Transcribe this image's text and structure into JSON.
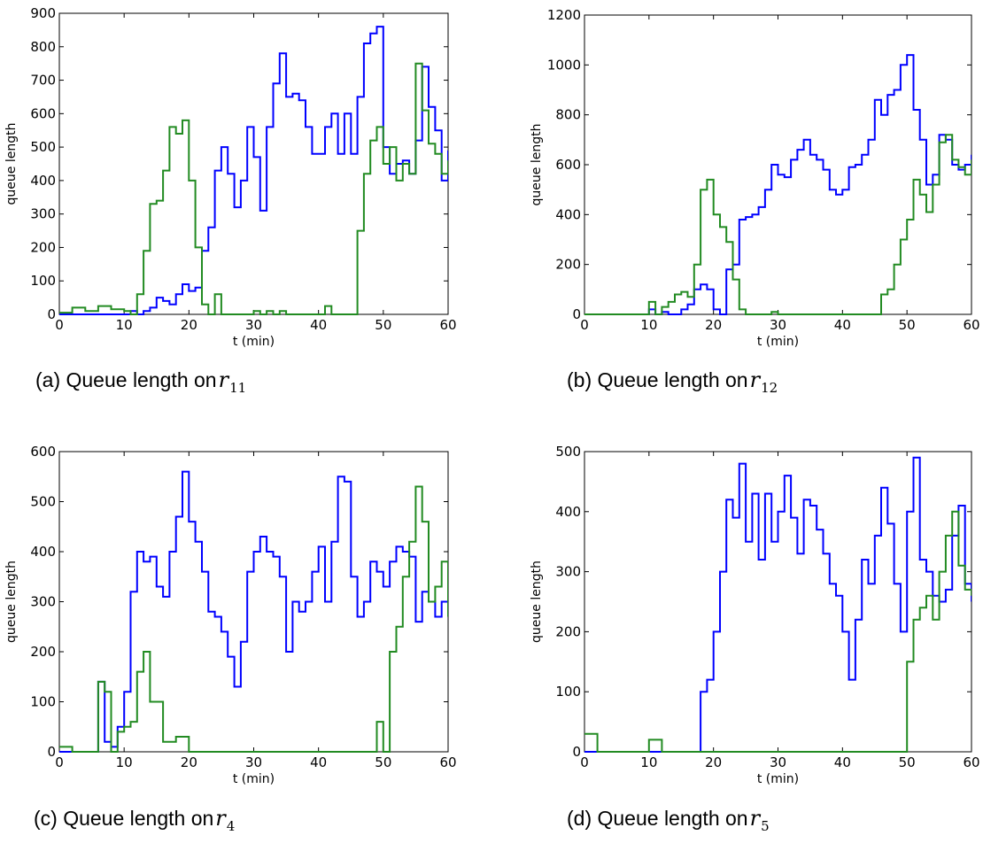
{
  "chart_data": [
    {
      "type": "line",
      "caption": "(a)  Queue length on ",
      "caption_symbol": "r",
      "caption_subscript": "11",
      "xlabel": "t (min)",
      "ylabel": "queue length",
      "xlim": [
        0,
        60
      ],
      "ylim": [
        0,
        900
      ],
      "xticks": [
        0,
        10,
        20,
        30,
        40,
        50,
        60
      ],
      "yticks": [
        0,
        100,
        200,
        300,
        400,
        500,
        600,
        700,
        800,
        900
      ],
      "series": [
        {
          "color": "#0000ff",
          "x": [
            0,
            2,
            4,
            6,
            8,
            10,
            11,
            12,
            13,
            14,
            15,
            16,
            17,
            18,
            19,
            20,
            21,
            22,
            23,
            24,
            25,
            26,
            27,
            28,
            29,
            30,
            31,
            32,
            33,
            34,
            35,
            36,
            37,
            38,
            39,
            40,
            41,
            42,
            43,
            44,
            45,
            46,
            47,
            48,
            49,
            50,
            51,
            52,
            53,
            54,
            55,
            56,
            57,
            58,
            59,
            60
          ],
          "y": [
            0,
            0,
            0,
            0,
            0,
            0,
            10,
            0,
            10,
            20,
            50,
            40,
            30,
            60,
            90,
            70,
            80,
            190,
            260,
            430,
            500,
            420,
            320,
            400,
            560,
            470,
            310,
            560,
            690,
            780,
            650,
            660,
            640,
            560,
            480,
            480,
            560,
            600,
            480,
            600,
            480,
            650,
            810,
            840,
            860,
            500,
            420,
            450,
            460,
            420,
            520,
            740,
            620,
            550,
            400,
            490
          ]
        },
        {
          "color": "#228b22",
          "x": [
            0,
            2,
            4,
            6,
            8,
            10,
            11,
            12,
            13,
            14,
            15,
            16,
            17,
            18,
            19,
            20,
            21,
            22,
            23,
            24,
            25,
            26,
            27,
            28,
            29,
            30,
            31,
            32,
            33,
            34,
            35,
            36,
            37,
            38,
            39,
            40,
            41,
            42,
            43,
            44,
            45,
            46,
            47,
            48,
            49,
            50,
            51,
            52,
            53,
            54,
            55,
            56,
            57,
            58,
            59,
            60
          ],
          "y": [
            5,
            20,
            10,
            25,
            15,
            10,
            0,
            60,
            190,
            330,
            340,
            430,
            560,
            540,
            580,
            400,
            200,
            30,
            0,
            60,
            0,
            0,
            0,
            0,
            0,
            10,
            0,
            10,
            0,
            10,
            0,
            0,
            0,
            0,
            0,
            0,
            25,
            0,
            0,
            0,
            0,
            250,
            420,
            520,
            560,
            450,
            500,
            400,
            450,
            420,
            750,
            610,
            510,
            480,
            420,
            460
          ]
        }
      ]
    },
    {
      "type": "line",
      "caption": "(b)  Queue length on ",
      "caption_symbol": "r",
      "caption_subscript": "12",
      "xlabel": "t (min)",
      "ylabel": "queue length",
      "xlim": [
        0,
        60
      ],
      "ylim": [
        0,
        1200
      ],
      "xticks": [
        0,
        10,
        20,
        30,
        40,
        50,
        60
      ],
      "yticks": [
        0,
        200,
        400,
        600,
        800,
        1000,
        1200
      ],
      "series": [
        {
          "color": "#0000ff",
          "x": [
            0,
            2,
            4,
            6,
            8,
            10,
            11,
            12,
            13,
            14,
            15,
            16,
            17,
            18,
            19,
            20,
            21,
            22,
            23,
            24,
            25,
            26,
            27,
            28,
            29,
            30,
            31,
            32,
            33,
            34,
            35,
            36,
            37,
            38,
            39,
            40,
            41,
            42,
            43,
            44,
            45,
            46,
            47,
            48,
            49,
            50,
            51,
            52,
            53,
            54,
            55,
            56,
            57,
            58,
            59,
            60
          ],
          "y": [
            0,
            0,
            0,
            0,
            0,
            20,
            0,
            10,
            0,
            0,
            20,
            40,
            100,
            120,
            100,
            20,
            0,
            180,
            200,
            380,
            390,
            400,
            430,
            500,
            600,
            560,
            550,
            620,
            660,
            700,
            640,
            620,
            580,
            500,
            480,
            500,
            590,
            600,
            640,
            700,
            860,
            800,
            880,
            900,
            1000,
            1040,
            820,
            700,
            520,
            560,
            720,
            700,
            600,
            580,
            600,
            640
          ]
        },
        {
          "color": "#228b22",
          "x": [
            0,
            2,
            4,
            6,
            8,
            10,
            11,
            12,
            13,
            14,
            15,
            16,
            17,
            18,
            19,
            20,
            21,
            22,
            23,
            24,
            25,
            26,
            27,
            28,
            29,
            30,
            31,
            32,
            33,
            34,
            35,
            36,
            37,
            38,
            39,
            40,
            41,
            42,
            43,
            44,
            45,
            46,
            47,
            48,
            49,
            50,
            51,
            52,
            53,
            54,
            55,
            56,
            57,
            58,
            59,
            60
          ],
          "y": [
            0,
            0,
            0,
            0,
            0,
            50,
            0,
            30,
            50,
            80,
            90,
            70,
            200,
            500,
            540,
            400,
            350,
            290,
            140,
            20,
            0,
            0,
            0,
            0,
            10,
            0,
            0,
            0,
            0,
            0,
            0,
            0,
            0,
            0,
            0,
            0,
            0,
            0,
            0,
            0,
            0,
            80,
            100,
            200,
            300,
            380,
            540,
            480,
            410,
            520,
            690,
            720,
            620,
            590,
            560,
            620
          ]
        }
      ]
    },
    {
      "type": "line",
      "caption": "(c)  Queue length on ",
      "caption_symbol": "r",
      "caption_subscript": "4",
      "xlabel": "t (min)",
      "ylabel": "queue length",
      "xlim": [
        0,
        60
      ],
      "ylim": [
        0,
        600
      ],
      "xticks": [
        0,
        10,
        20,
        30,
        40,
        50,
        60
      ],
      "yticks": [
        0,
        100,
        200,
        300,
        400,
        500,
        600
      ],
      "series": [
        {
          "color": "#0000ff",
          "x": [
            0,
            2,
            4,
            6,
            7,
            8,
            9,
            10,
            11,
            12,
            13,
            14,
            15,
            16,
            17,
            18,
            19,
            20,
            21,
            22,
            23,
            24,
            25,
            26,
            27,
            28,
            29,
            30,
            31,
            32,
            33,
            34,
            35,
            36,
            37,
            38,
            39,
            40,
            41,
            42,
            43,
            44,
            45,
            46,
            47,
            48,
            49,
            50,
            51,
            52,
            53,
            54,
            55,
            56,
            57,
            58,
            59,
            60
          ],
          "y": [
            0,
            0,
            0,
            140,
            20,
            10,
            50,
            120,
            320,
            400,
            380,
            390,
            330,
            310,
            400,
            470,
            560,
            460,
            420,
            360,
            280,
            270,
            240,
            190,
            130,
            220,
            360,
            400,
            430,
            400,
            390,
            350,
            200,
            300,
            280,
            300,
            360,
            410,
            300,
            420,
            550,
            540,
            350,
            270,
            300,
            380,
            360,
            330,
            380,
            410,
            400,
            390,
            260,
            320,
            300,
            270,
            300,
            270
          ]
        },
        {
          "color": "#228b22",
          "x": [
            0,
            2,
            4,
            6,
            7,
            8,
            9,
            10,
            11,
            12,
            13,
            14,
            15,
            16,
            17,
            18,
            19,
            20,
            21,
            22,
            23,
            24,
            25,
            26,
            27,
            28,
            29,
            30,
            31,
            32,
            33,
            34,
            35,
            36,
            37,
            38,
            39,
            40,
            41,
            42,
            43,
            44,
            45,
            46,
            47,
            48,
            49,
            50,
            51,
            52,
            53,
            54,
            55,
            56,
            57,
            58,
            59,
            60
          ],
          "y": [
            10,
            0,
            0,
            140,
            120,
            0,
            40,
            50,
            60,
            160,
            200,
            100,
            100,
            20,
            20,
            30,
            30,
            0,
            0,
            0,
            0,
            0,
            0,
            0,
            0,
            0,
            0,
            0,
            0,
            0,
            0,
            0,
            0,
            0,
            0,
            0,
            0,
            0,
            0,
            0,
            0,
            0,
            0,
            0,
            0,
            0,
            60,
            0,
            200,
            250,
            350,
            420,
            530,
            460,
            300,
            330,
            380,
            270
          ]
        }
      ]
    },
    {
      "type": "line",
      "caption": "(d)  Queue length on ",
      "caption_symbol": "r",
      "caption_subscript": "5",
      "xlabel": "t (min)",
      "ylabel": "queue length",
      "xlim": [
        0,
        60
      ],
      "ylim": [
        0,
        500
      ],
      "xticks": [
        0,
        10,
        20,
        30,
        40,
        50,
        60
      ],
      "yticks": [
        0,
        100,
        200,
        300,
        400,
        500
      ],
      "series": [
        {
          "color": "#0000ff",
          "x": [
            0,
            2,
            4,
            6,
            8,
            10,
            12,
            14,
            16,
            17,
            18,
            19,
            20,
            21,
            22,
            23,
            24,
            25,
            26,
            27,
            28,
            29,
            30,
            31,
            32,
            33,
            34,
            35,
            36,
            37,
            38,
            39,
            40,
            41,
            42,
            43,
            44,
            45,
            46,
            47,
            48,
            49,
            50,
            51,
            52,
            53,
            54,
            55,
            56,
            57,
            58,
            59,
            60
          ],
          "y": [
            0,
            0,
            0,
            0,
            0,
            0,
            0,
            0,
            0,
            0,
            100,
            120,
            200,
            300,
            420,
            390,
            480,
            350,
            430,
            320,
            430,
            350,
            400,
            460,
            390,
            330,
            420,
            410,
            370,
            330,
            280,
            260,
            200,
            120,
            220,
            320,
            280,
            360,
            440,
            380,
            280,
            200,
            400,
            490,
            320,
            300,
            260,
            250,
            270,
            360,
            410,
            280,
            250
          ]
        },
        {
          "color": "#228b22",
          "x": [
            0,
            2,
            4,
            6,
            8,
            10,
            12,
            14,
            16,
            17,
            18,
            19,
            20,
            21,
            22,
            23,
            24,
            25,
            26,
            27,
            28,
            29,
            30,
            31,
            32,
            33,
            34,
            35,
            36,
            37,
            38,
            39,
            40,
            41,
            42,
            43,
            44,
            45,
            46,
            47,
            48,
            49,
            50,
            51,
            52,
            53,
            54,
            55,
            56,
            57,
            58,
            59,
            60
          ],
          "y": [
            30,
            0,
            0,
            0,
            0,
            20,
            0,
            0,
            0,
            0,
            0,
            0,
            0,
            0,
            0,
            0,
            0,
            0,
            0,
            0,
            0,
            0,
            0,
            0,
            0,
            0,
            0,
            0,
            0,
            0,
            0,
            0,
            0,
            0,
            0,
            0,
            0,
            0,
            0,
            0,
            0,
            0,
            150,
            220,
            240,
            260,
            220,
            300,
            360,
            400,
            310,
            270,
            260
          ]
        }
      ]
    }
  ]
}
